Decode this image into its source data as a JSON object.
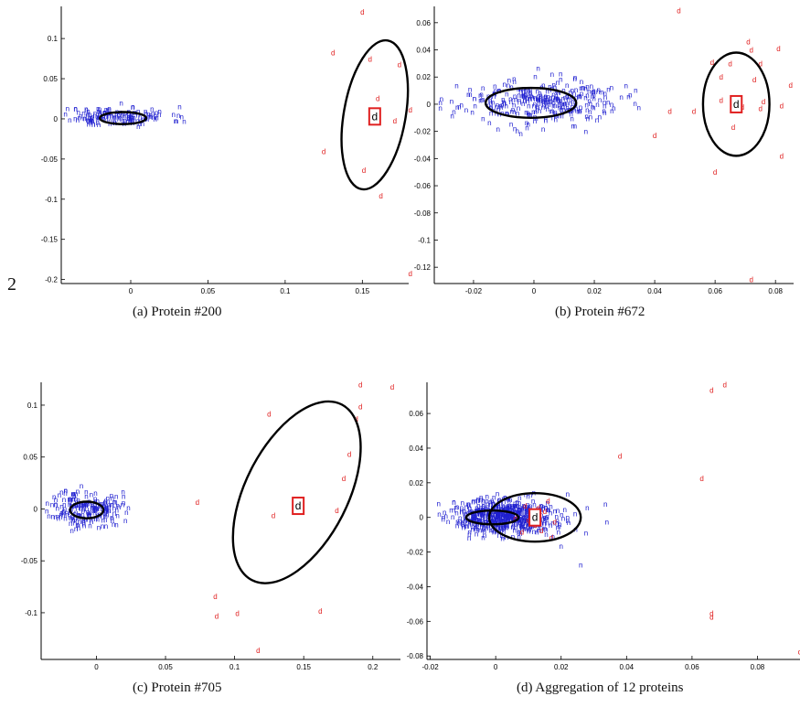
{
  "page_number": "2",
  "colors": {
    "class_n": "#2020d0",
    "class_d": "#e02020",
    "ellipse": "#000000",
    "box": "#e02020"
  },
  "chart_data": [
    {
      "type": "scatter",
      "caption": "(a) Protein #200",
      "xlim": [
        -0.045,
        0.18
      ],
      "ylim": [
        -0.205,
        0.14
      ],
      "xticks": [
        0,
        0.05,
        0.1,
        0.15
      ],
      "yticks": [
        -0.2,
        -0.15,
        -0.1,
        -0.05,
        0,
        0.05,
        0.1
      ],
      "n_cluster": {
        "center": [
          -0.01,
          0.0
        ],
        "spread": [
          0.018,
          0.006
        ],
        "count": 160,
        "seed": 11
      },
      "d_points": [
        [
          0.15,
          0.13
        ],
        [
          0.131,
          0.079
        ],
        [
          0.155,
          0.071
        ],
        [
          0.174,
          0.064
        ],
        [
          0.16,
          0.022
        ],
        [
          0.181,
          0.008
        ],
        [
          0.171,
          -0.006
        ],
        [
          0.125,
          -0.044
        ],
        [
          0.151,
          -0.067
        ],
        [
          0.162,
          -0.099
        ],
        [
          0.181,
          -0.196
        ]
      ],
      "ellipses": [
        {
          "center": [
            -0.005,
            0.001
          ],
          "rx": 0.015,
          "ry": 0.0075,
          "angle": 0
        },
        {
          "center": [
            0.158,
            0.005
          ],
          "rx": 0.02,
          "ry": 0.094,
          "angle": 10
        }
      ],
      "boxed_point": {
        "label": "d",
        "x": 0.158,
        "y": 0.003
      }
    },
    {
      "type": "scatter",
      "caption": "(b) Protein #672",
      "xlim": [
        -0.033,
        0.086
      ],
      "ylim": [
        -0.132,
        0.072
      ],
      "xticks": [
        -0.02,
        0,
        0.02,
        0.04,
        0.06,
        0.08
      ],
      "yticks": [
        -0.12,
        -0.1,
        -0.08,
        -0.06,
        -0.04,
        -0.02,
        0,
        0.02,
        0.04,
        0.06
      ],
      "n_cluster": {
        "center": [
          0.002,
          0.0
        ],
        "spread": [
          0.013,
          0.008
        ],
        "count": 320,
        "seed": 23
      },
      "d_points": [
        [
          0.048,
          0.067
        ],
        [
          0.059,
          0.029
        ],
        [
          0.071,
          0.044
        ],
        [
          0.072,
          0.038
        ],
        [
          0.081,
          0.039
        ],
        [
          0.065,
          0.028
        ],
        [
          0.075,
          0.028
        ],
        [
          0.062,
          0.018
        ],
        [
          0.073,
          0.016
        ],
        [
          0.085,
          0.012
        ],
        [
          0.062,
          0.001
        ],
        [
          0.076,
          0.0
        ],
        [
          0.082,
          -0.003
        ],
        [
          0.069,
          -0.004
        ],
        [
          0.075,
          -0.005
        ],
        [
          0.053,
          -0.007
        ],
        [
          0.045,
          -0.007
        ],
        [
          0.066,
          -0.019
        ],
        [
          0.04,
          -0.025
        ],
        [
          0.06,
          -0.052
        ],
        [
          0.082,
          -0.04
        ],
        [
          0.072,
          -0.131
        ]
      ],
      "ellipses": [
        {
          "center": [
            -0.001,
            0.001
          ],
          "rx": 0.015,
          "ry": 0.011,
          "angle": 0
        },
        {
          "center": [
            0.067,
            0.0
          ],
          "rx": 0.011,
          "ry": 0.038,
          "angle": 0
        }
      ],
      "boxed_point": {
        "label": "d",
        "x": 0.067,
        "y": 0.0
      }
    },
    {
      "type": "scatter",
      "caption": "(c) Protein #705",
      "xlim": [
        -0.04,
        0.22
      ],
      "ylim": [
        -0.145,
        0.122
      ],
      "xticks": [
        0,
        0.05,
        0.1,
        0.15,
        0.2
      ],
      "yticks": [
        -0.1,
        -0.05,
        0,
        0.05,
        0.1
      ],
      "n_cluster": {
        "center": [
          -0.008,
          -0.002
        ],
        "spread": [
          0.013,
          0.009
        ],
        "count": 210,
        "seed": 37
      },
      "d_points": [
        [
          0.191,
          0.117
        ],
        [
          0.214,
          0.115
        ],
        [
          0.125,
          0.089
        ],
        [
          0.191,
          0.096
        ],
        [
          0.188,
          0.084
        ],
        [
          0.183,
          0.05
        ],
        [
          0.179,
          0.027
        ],
        [
          0.073,
          0.004
        ],
        [
          0.128,
          -0.009
        ],
        [
          0.174,
          -0.004
        ],
        [
          0.086,
          -0.087
        ],
        [
          0.087,
          -0.106
        ],
        [
          0.102,
          -0.103
        ],
        [
          0.162,
          -0.101
        ],
        [
          0.117,
          -0.139
        ]
      ],
      "ellipses": [
        {
          "center": [
            -0.007,
            -0.001
          ],
          "rx": 0.012,
          "ry": 0.008,
          "angle": 0
        },
        {
          "center": [
            0.145,
            0.016
          ],
          "rx": 0.037,
          "ry": 0.095,
          "angle": 27
        }
      ],
      "boxed_point": {
        "label": "d",
        "x": 0.146,
        "y": 0.003
      }
    },
    {
      "type": "scatter",
      "caption": "(d) Aggregation of 12 proteins",
      "xlim": [
        -0.021,
        0.093
      ],
      "ylim": [
        -0.082,
        0.078
      ],
      "xticks": [
        -0.02,
        0,
        0.02,
        0.04,
        0.06,
        0.08
      ],
      "yticks": [
        -0.08,
        -0.06,
        -0.04,
        -0.02,
        0,
        0.02,
        0.04,
        0.06
      ],
      "n_cluster": {
        "center": [
          0.003,
          -0.001
        ],
        "spread": [
          0.008,
          0.005
        ],
        "count": 650,
        "seed": 51
      },
      "d_points": [
        [
          0.066,
          0.072
        ],
        [
          0.07,
          0.075
        ],
        [
          0.038,
          0.034
        ],
        [
          0.063,
          0.021
        ],
        [
          0.066,
          -0.057
        ],
        [
          0.066,
          -0.059
        ],
        [
          0.093,
          -0.079
        ],
        [
          0.011,
          0.0
        ],
        [
          0.013,
          0.004
        ],
        [
          0.01,
          -0.003
        ],
        [
          0.012,
          -0.006
        ],
        [
          0.015,
          0.002
        ],
        [
          0.009,
          0.005
        ],
        [
          0.014,
          -0.009
        ],
        [
          0.017,
          -0.013
        ],
        [
          0.008,
          -0.01
        ],
        [
          0.016,
          0.008
        ],
        [
          0.018,
          -0.004
        ],
        [
          0.006,
          -0.002
        ]
      ],
      "extra_n_points": [
        [
          0.026,
          -0.029
        ],
        [
          0.034,
          -0.004
        ],
        [
          0.02,
          -0.018
        ],
        [
          0.022,
          0.012
        ],
        [
          0.028,
          0.004
        ]
      ],
      "ellipses": [
        {
          "center": [
            -0.001,
            0.0
          ],
          "rx": 0.008,
          "ry": 0.004,
          "angle": 0
        },
        {
          "center": [
            0.012,
            0.0
          ],
          "rx": 0.014,
          "ry": 0.014,
          "angle": 0
        }
      ],
      "boxed_point": {
        "label": "d",
        "x": 0.012,
        "y": 0.0
      }
    }
  ]
}
